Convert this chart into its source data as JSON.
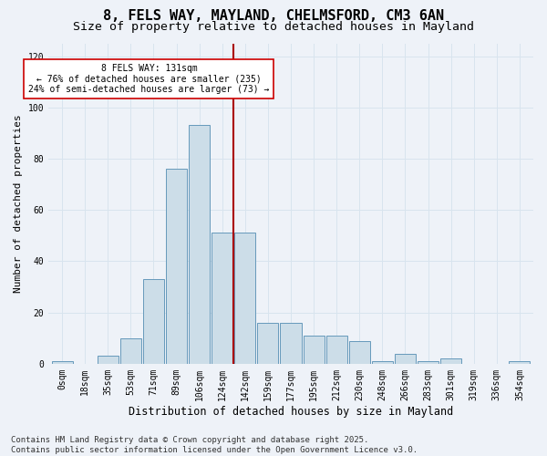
{
  "title": "8, FELS WAY, MAYLAND, CHELMSFORD, CM3 6AN",
  "subtitle": "Size of property relative to detached houses in Mayland",
  "xlabel": "Distribution of detached houses by size in Mayland",
  "ylabel": "Number of detached properties",
  "bar_labels": [
    "0sqm",
    "18sqm",
    "35sqm",
    "53sqm",
    "71sqm",
    "89sqm",
    "106sqm",
    "124sqm",
    "142sqm",
    "159sqm",
    "177sqm",
    "195sqm",
    "212sqm",
    "230sqm",
    "248sqm",
    "266sqm",
    "283sqm",
    "301sqm",
    "319sqm",
    "336sqm",
    "354sqm"
  ],
  "bar_values": [
    1,
    0,
    3,
    10,
    33,
    76,
    93,
    51,
    51,
    16,
    16,
    11,
    11,
    9,
    1,
    4,
    1,
    2,
    0,
    0,
    1
  ],
  "bar_color": "#ccdde8",
  "bar_edge_color": "#6699bb",
  "grid_color": "#d8e4ee",
  "background_color": "#eef2f8",
  "vline_x": 7.5,
  "vline_color": "#aa0000",
  "annotation_text": "8 FELS WAY: 131sqm\n← 76% of detached houses are smaller (235)\n24% of semi-detached houses are larger (73) →",
  "annotation_box_color": "#ffffff",
  "annotation_text_color": "#000000",
  "annotation_box_edge_color": "#cc0000",
  "ylim": [
    0,
    125
  ],
  "yticks": [
    0,
    20,
    40,
    60,
    80,
    100,
    120
  ],
  "footer_text": "Contains HM Land Registry data © Crown copyright and database right 2025.\nContains public sector information licensed under the Open Government Licence v3.0.",
  "title_fontsize": 11,
  "subtitle_fontsize": 9.5,
  "xlabel_fontsize": 8.5,
  "ylabel_fontsize": 8,
  "tick_fontsize": 7,
  "footer_fontsize": 6.5
}
